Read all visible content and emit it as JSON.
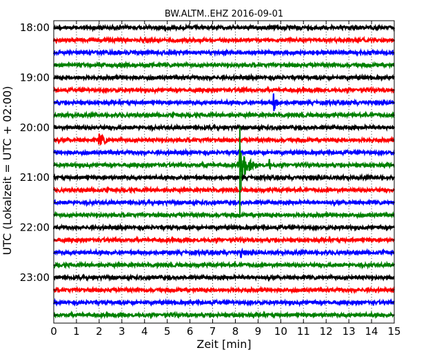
{
  "chart_data": {
    "type": "line",
    "title": "BW.ALTM..EHZ 2016-09-01",
    "xlabel": "Zeit  [min]",
    "ylabel": "UTC (Lokalzeit = UTC + 02:00)",
    "xlim": [
      0,
      15
    ],
    "x_ticks": [
      0,
      1,
      2,
      3,
      4,
      5,
      6,
      7,
      8,
      9,
      10,
      11,
      12,
      13,
      14,
      15
    ],
    "y_tick_labels": [
      "18:00",
      "19:00",
      "20:00",
      "21:00",
      "22:00",
      "23:00"
    ],
    "trace_start_times": [
      "18:00",
      "18:15",
      "18:30",
      "18:45",
      "19:00",
      "19:15",
      "19:30",
      "19:45",
      "20:00",
      "20:15",
      "20:30",
      "20:45",
      "21:00",
      "21:15",
      "21:30",
      "21:45",
      "22:00",
      "22:15",
      "22:30",
      "22:45",
      "23:00",
      "23:15",
      "23:30",
      "23:45"
    ],
    "trace_colors": [
      "#000000",
      "#ff0000",
      "#0000ff",
      "#008000"
    ],
    "grid": {
      "x": true,
      "y": false
    },
    "events": [
      {
        "trace": 0,
        "minute": 11.4,
        "amplitude": 0.35,
        "duration_min": 0.15
      },
      {
        "trace": 2,
        "minute": 11.6,
        "amplitude": 0.3,
        "duration_min": 0.2
      },
      {
        "trace": 5,
        "minute": 8.3,
        "amplitude": 0.35,
        "duration_min": 0.3
      },
      {
        "trace": 6,
        "minute": 9.7,
        "amplitude": 0.95,
        "duration_min": 0.35
      },
      {
        "trace": 9,
        "minute": 2.0,
        "amplitude": 0.6,
        "duration_min": 0.9
      },
      {
        "trace": 11,
        "minute": 8.2,
        "amplitude": 1.7,
        "duration_min": 1.0
      },
      {
        "trace": 11,
        "minute": 9.5,
        "amplitude": 0.6,
        "duration_min": 0.15
      },
      {
        "trace": 11,
        "minute": 6.7,
        "amplitude": 0.35,
        "duration_min": 0.2
      },
      {
        "trace": 18,
        "minute": 8.25,
        "amplitude": 0.45,
        "duration_min": 0.3
      },
      {
        "trace": 22,
        "minute": 14.1,
        "amplitude": 0.35,
        "duration_min": 0.1
      }
    ],
    "spike": {
      "minute": 8.2,
      "from_trace": 8,
      "to_trace": 15,
      "color": "#008000"
    }
  }
}
